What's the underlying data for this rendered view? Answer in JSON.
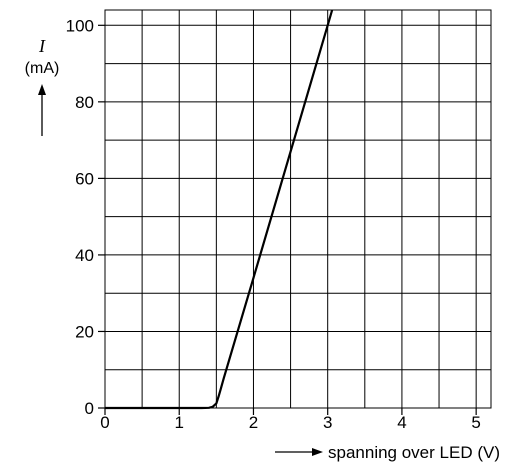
{
  "chart_data": {
    "type": "line",
    "title": "",
    "ylabel_symbol": "I",
    "ylabel_unit": "(mA)",
    "xlabel": "spanning over LED (V)",
    "xlim": [
      0,
      5.2
    ],
    "ylim": [
      0,
      104
    ],
    "x_major_ticks": [
      0,
      1,
      2,
      3,
      4,
      5
    ],
    "x_tick_labels": [
      "0",
      "1",
      "2",
      "3",
      "4",
      "5"
    ],
    "y_major_ticks": [
      0,
      20,
      40,
      60,
      80,
      100
    ],
    "y_tick_labels": [
      "0",
      "20",
      "40",
      "60",
      "80",
      "100"
    ],
    "x_grid_step": 0.5,
    "y_grid_step": 10,
    "grid": true,
    "series": [
      {
        "color": "#000000",
        "points": [
          [
            0,
            0
          ],
          [
            1.0,
            0
          ],
          [
            1.3,
            0
          ],
          [
            1.4,
            0.05
          ],
          [
            1.45,
            0.3
          ],
          [
            1.5,
            1.2
          ],
          [
            1.53,
            3.0
          ],
          [
            1.56,
            5.0
          ],
          [
            1.6,
            7.8
          ],
          [
            2.0,
            34
          ],
          [
            2.5,
            67
          ],
          [
            3.0,
            100
          ],
          [
            3.06,
            104
          ]
        ]
      }
    ]
  }
}
